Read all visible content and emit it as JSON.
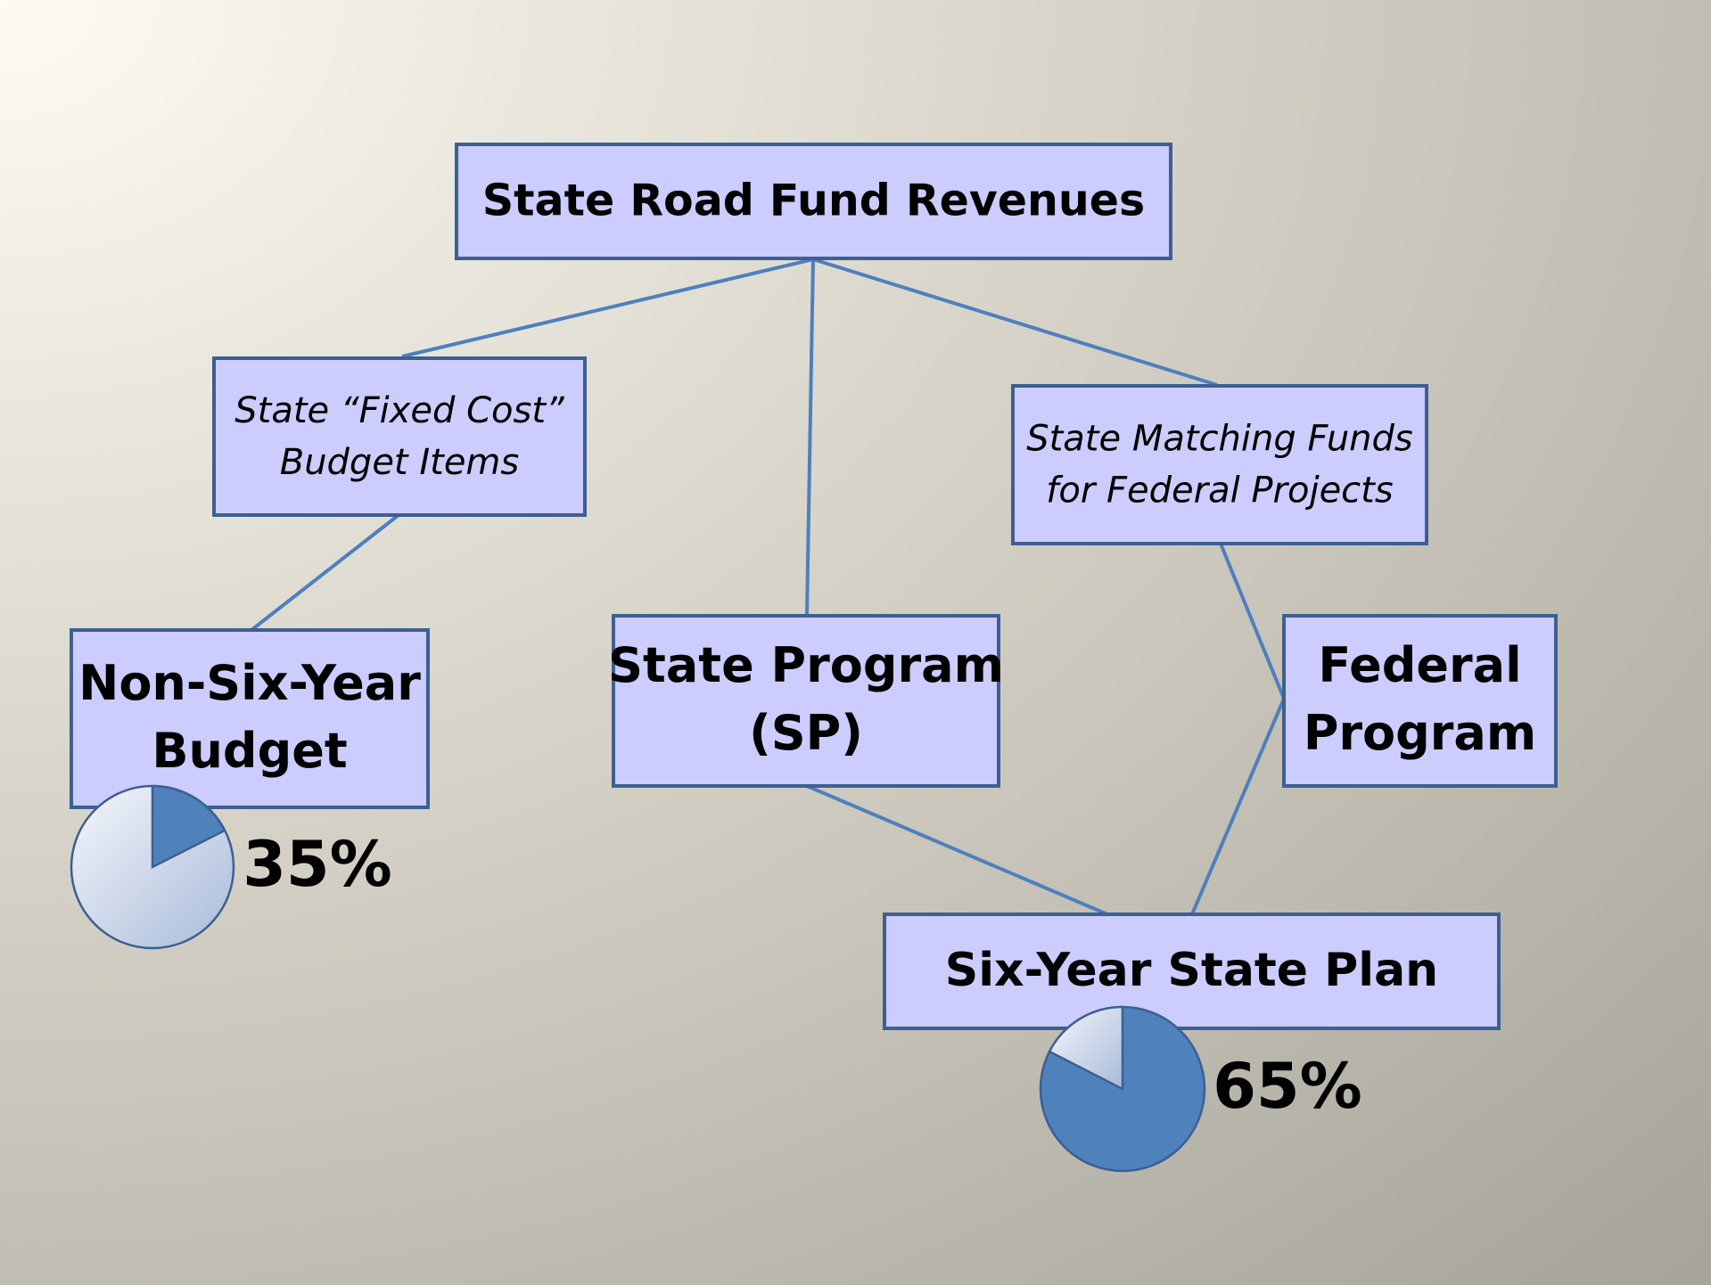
{
  "nodes": [
    {
      "label": [
        "State Road Fund Revenues"
      ]
    },
    {
      "label": [
        "State “Fixed Cost”",
        "Budget Items"
      ]
    },
    {
      "label": [
        "State Matching Funds",
        "for Federal Projects"
      ]
    },
    {
      "label": [
        "Non-Six-Year",
        "Budget"
      ]
    },
    {
      "label": [
        "State Program",
        "(SP)"
      ]
    },
    {
      "label": [
        "Federal",
        "Program"
      ]
    },
    {
      "label": [
        "Six-Year State Plan"
      ]
    }
  ],
  "shares": [
    {
      "label": "35%"
    },
    {
      "label": "65%"
    }
  ]
}
